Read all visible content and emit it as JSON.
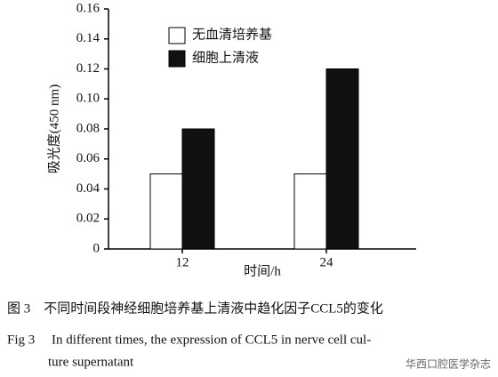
{
  "chart_data": {
    "type": "bar",
    "categories": [
      "12",
      "24"
    ],
    "series": [
      {
        "name": "无血清培养基",
        "color": "#ffffff",
        "values": [
          0.05,
          0.05
        ]
      },
      {
        "name": "细胞上清液",
        "color": "#111111",
        "values": [
          0.08,
          0.12
        ]
      }
    ],
    "edgecolor": "#000000",
    "xlabel": "时间/h",
    "ylabel": "吸光度(450 nm)",
    "ylim": [
      0,
      0.16
    ],
    "yticks": [
      0,
      0.02,
      0.04,
      0.06,
      0.08,
      {
        "value": 0.1,
        "label": "0.10"
      },
      0.12,
      0.14,
      0.16
    ],
    "legend": "upper left",
    "grid": false
  },
  "caption": {
    "chinese": "图 3　不同时间段神经细胞培养基上清液中趋化因子CCL5的变化",
    "english": [
      "Fig 3　 In different times, the expression of CCL5 in nerve cell cul-",
      "ture supernatant"
    ]
  },
  "watermark": "华西口腔医学杂志"
}
